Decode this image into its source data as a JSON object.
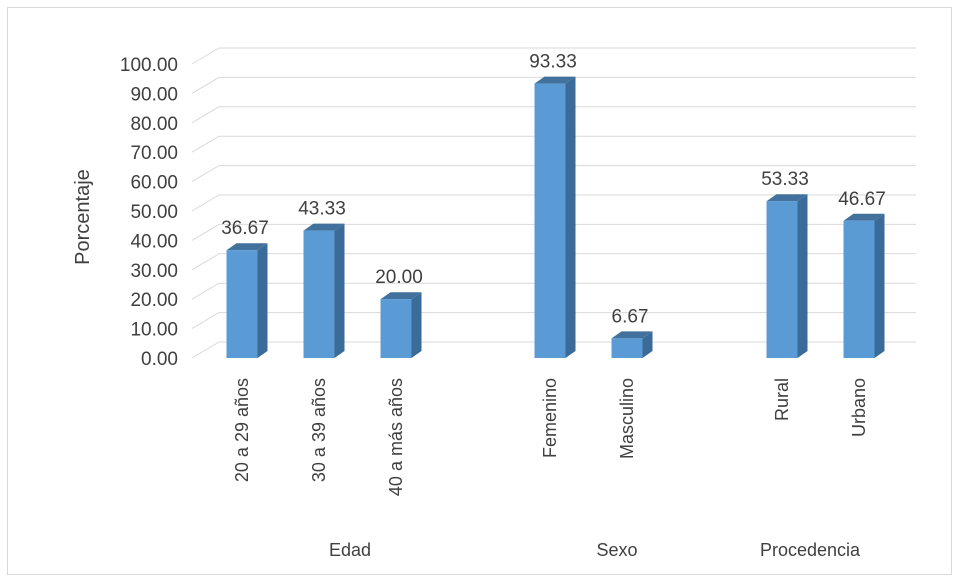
{
  "chart_data": {
    "type": "bar",
    "style": "3d-clustered-column",
    "ylabel": "Porcentaje",
    "ylim": [
      0,
      100
    ],
    "yticks": [
      "0.00",
      "10.00",
      "20.00",
      "30.00",
      "40.00",
      "50.00",
      "60.00",
      "70.00",
      "80.00",
      "90.00",
      "100.00"
    ],
    "grid": true,
    "legend": "none",
    "bar_color": "#5b9bd5",
    "bar_side_color": "#3a6b99",
    "bar_top_color": "#41719c",
    "groups": [
      {
        "name": "Edad",
        "categories": [
          "20 a 29 años",
          "30 a 39 años",
          "40 a más años"
        ],
        "values": [
          36.67,
          43.33,
          20.0
        ],
        "labels": [
          "36.67",
          "43.33",
          "20.00"
        ]
      },
      {
        "name": "Sexo",
        "categories": [
          "Femenino",
          "Masculino"
        ],
        "values": [
          93.33,
          6.67
        ],
        "labels": [
          "93.33",
          "6.67"
        ]
      },
      {
        "name": "Procedencia",
        "categories": [
          "Rural",
          "Urbano"
        ],
        "values": [
          53.33,
          46.67
        ],
        "labels": [
          "53.33",
          "46.67"
        ]
      }
    ]
  }
}
